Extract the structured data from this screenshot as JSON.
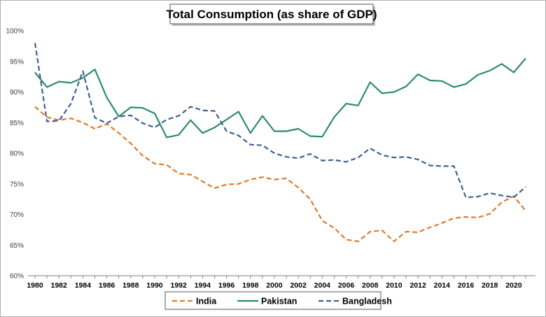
{
  "chart_data": {
    "type": "line",
    "title": "Total Consumption (as share of GDP)",
    "xlabel": "",
    "ylabel": "",
    "ylim": [
      60,
      100
    ],
    "xlim": [
      1980,
      2021
    ],
    "x_ticks": [
      "1980",
      "1982",
      "1984",
      "1986",
      "1988",
      "1990",
      "1992",
      "1994",
      "1996",
      "1998",
      "2000",
      "2002",
      "2004",
      "2006",
      "2008",
      "2010",
      "2012",
      "2014",
      "2016",
      "2018",
      "2020"
    ],
    "y_ticks": [
      "100%",
      "95%",
      "90%",
      "85%",
      "80%",
      "75%",
      "70%",
      "65%",
      "60%"
    ],
    "grid": false,
    "legend_position": "bottom",
    "x": [
      1980,
      1981,
      1982,
      1983,
      1984,
      1985,
      1986,
      1987,
      1988,
      1989,
      1990,
      1991,
      1992,
      1993,
      1994,
      1995,
      1996,
      1997,
      1998,
      1999,
      2000,
      2001,
      2002,
      2003,
      2004,
      2005,
      2006,
      2007,
      2008,
      2009,
      2010,
      2011,
      2012,
      2013,
      2014,
      2015,
      2016,
      2017,
      2018,
      2019,
      2020,
      2021
    ],
    "series": [
      {
        "name": "India",
        "color": "#E07B2B",
        "dash": "dashed",
        "values": [
          87.6,
          85.9,
          85.4,
          85.7,
          85.0,
          84.0,
          84.8,
          83.3,
          81.6,
          79.6,
          78.3,
          78.1,
          76.7,
          76.5,
          75.4,
          74.3,
          74.9,
          75.0,
          75.7,
          76.1,
          75.7,
          75.9,
          74.4,
          72.5,
          69.0,
          67.8,
          65.9,
          65.6,
          67.2,
          67.4,
          65.6,
          67.2,
          67.1,
          67.9,
          68.6,
          69.4,
          69.6,
          69.5,
          70.1,
          72.0,
          73.0,
          70.6
        ]
      },
      {
        "name": "Pakistan",
        "color": "#2E8B6F",
        "dash": "solid",
        "values": [
          93.2,
          90.8,
          91.7,
          91.5,
          92.3,
          93.7,
          89.1,
          86.0,
          87.5,
          87.4,
          86.5,
          82.6,
          83.0,
          85.4,
          83.3,
          84.2,
          85.5,
          86.8,
          83.3,
          86.1,
          83.6,
          83.6,
          84.0,
          82.8,
          82.7,
          85.9,
          88.1,
          87.8,
          91.6,
          89.8,
          90.0,
          90.9,
          92.9,
          91.9,
          91.8,
          90.8,
          91.3,
          92.8,
          93.5,
          94.6,
          93.2,
          95.5
        ]
      },
      {
        "name": "Bangladesh",
        "color": "#3F5F96",
        "dash": "dashed",
        "values": [
          98.0,
          85.2,
          85.3,
          88.1,
          93.4,
          85.8,
          84.9,
          86.0,
          86.2,
          84.9,
          84.2,
          85.5,
          86.1,
          87.6,
          87.0,
          86.9,
          83.6,
          82.9,
          81.4,
          81.3,
          80.0,
          79.4,
          79.2,
          79.9,
          78.8,
          78.9,
          78.6,
          79.3,
          80.8,
          79.7,
          79.3,
          79.4,
          79.0,
          78.0,
          77.9,
          77.9,
          72.8,
          72.9,
          73.5,
          73.1,
          72.8,
          74.5
        ]
      }
    ]
  }
}
